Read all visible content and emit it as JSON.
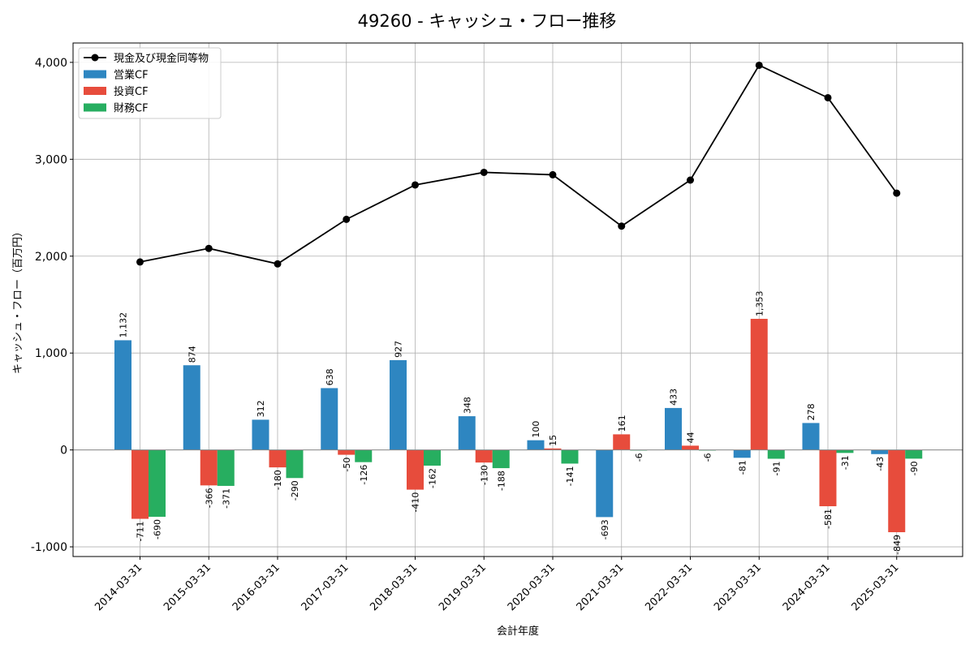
{
  "chart_data": {
    "type": "bar",
    "title": "49260 - キャッシュ・フロー推移",
    "xlabel": "会計年度",
    "ylabel": "キャッシュ・フロー（百万円）",
    "ylim": [
      -1100,
      4200
    ],
    "yticks": [
      -1000,
      0,
      1000,
      2000,
      3000,
      4000
    ],
    "ytick_labels": [
      "-1,000",
      "0",
      "1,000",
      "2,000",
      "3,000",
      "4,000"
    ],
    "grid": true,
    "legend_position": "top-left",
    "categories": [
      "2014-03-31",
      "2015-03-31",
      "2016-03-31",
      "2017-03-31",
      "2018-03-31",
      "2019-03-31",
      "2020-03-31",
      "2021-03-31",
      "2022-03-31",
      "2023-03-31",
      "2024-03-31",
      "2025-03-31"
    ],
    "series": [
      {
        "name": "営業CF",
        "kind": "bar",
        "color": "#2e86c1",
        "values": [
          1132,
          874,
          312,
          638,
          927,
          348,
          100,
          -693,
          433,
          -81,
          278,
          -43
        ],
        "labels": [
          "1,132",
          "874",
          "312",
          "638",
          "927",
          "348",
          "100",
          "-693",
          "433",
          "-81",
          "278",
          "-43"
        ]
      },
      {
        "name": "投資CF",
        "kind": "bar",
        "color": "#e74c3c",
        "values": [
          -711,
          -366,
          -180,
          -50,
          -410,
          -130,
          15,
          161,
          44,
          1353,
          -581,
          -849
        ],
        "labels": [
          "-711",
          "-366",
          "-180",
          "-50",
          "-410",
          "-130",
          "15",
          "161",
          "44",
          "1,353",
          "-581",
          "-849"
        ]
      },
      {
        "name": "財務CF",
        "kind": "bar",
        "color": "#27ae60",
        "values": [
          -690,
          -371,
          -290,
          -126,
          -162,
          -188,
          -141,
          -6,
          -6,
          -91,
          -31,
          -90
        ],
        "labels": [
          "-690",
          "-371",
          "-290",
          "-126",
          "-162",
          "-188",
          "-141",
          "-6",
          "-6",
          "-91",
          "-31",
          "-90"
        ]
      },
      {
        "name": "現金及び現金同等物",
        "kind": "line",
        "color": "#000000",
        "values": [
          1940,
          2080,
          1920,
          2380,
          2735,
          2865,
          2840,
          2310,
          2785,
          3970,
          3635,
          2650
        ]
      }
    ]
  }
}
